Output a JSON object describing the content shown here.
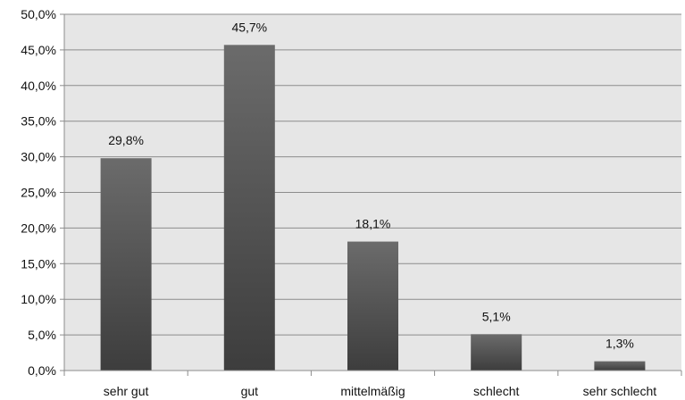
{
  "chart_data": {
    "type": "bar",
    "categories": [
      "sehr gut",
      "gut",
      "mittelmäßig",
      "schlecht",
      "sehr schlecht"
    ],
    "values": [
      29.8,
      45.7,
      18.1,
      5.1,
      1.3
    ],
    "data_labels": [
      "29,8%",
      "45,7%",
      "18,1%",
      "5,1%",
      "1,3%"
    ],
    "y_ticks": [
      0,
      5,
      10,
      15,
      20,
      25,
      30,
      35,
      40,
      45,
      50
    ],
    "y_tick_labels": [
      "0,0%",
      "5,0%",
      "10,0%",
      "15,0%",
      "20,0%",
      "25,0%",
      "30,0%",
      "35,0%",
      "40,0%",
      "45,0%",
      "50,0%"
    ],
    "ylim": [
      0,
      50
    ],
    "grid": true,
    "legend": "none",
    "colors": {
      "plot_background": "#e6e6e6",
      "gridline": "#8c8c8c",
      "bar_top": "#6b6b6b",
      "bar_bottom": "#3d3d3d"
    }
  }
}
